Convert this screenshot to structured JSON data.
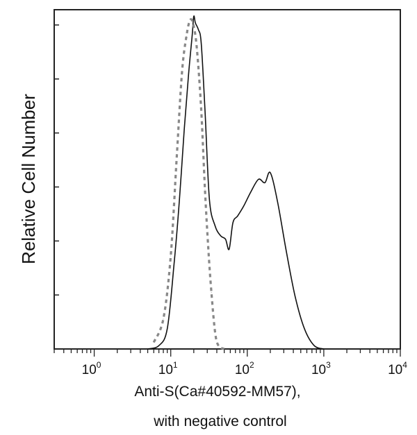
{
  "chart_data": {
    "type": "line",
    "title": "",
    "xlabel": "Anti-S(Ca#40592-MM57),",
    "xlabel_line2": "with negative control",
    "ylabel": "Relative Cell Number",
    "x_scale": "log",
    "xlim": [
      0.3,
      10000
    ],
    "ylim": [
      0,
      1.02
    ],
    "grid": false,
    "legend": "none",
    "x_ticks": [
      {
        "base": "10",
        "exp": "0",
        "value": 1
      },
      {
        "base": "10",
        "exp": "1",
        "value": 10
      },
      {
        "base": "10",
        "exp": "2",
        "value": 100
      },
      {
        "base": "10",
        "exp": "3",
        "value": 1000
      },
      {
        "base": "10",
        "exp": "4",
        "value": 10000
      }
    ],
    "y_tick_count": 6,
    "series": [
      {
        "style": "solid",
        "color": "#111111",
        "x": [
          5,
          7,
          9,
          11,
          13,
          15,
          17,
          19,
          20,
          21,
          23,
          25,
          28,
          32,
          38,
          45,
          52,
          58,
          65,
          75,
          90,
          110,
          140,
          170,
          200,
          250,
          320,
          420,
          560,
          750,
          1000
        ],
        "y": [
          0.0,
          0.01,
          0.06,
          0.25,
          0.45,
          0.66,
          0.82,
          0.94,
          1.0,
          0.98,
          0.96,
          0.92,
          0.72,
          0.45,
          0.37,
          0.34,
          0.33,
          0.3,
          0.38,
          0.4,
          0.43,
          0.47,
          0.51,
          0.5,
          0.53,
          0.44,
          0.3,
          0.16,
          0.06,
          0.01,
          0.0
        ]
      },
      {
        "style": "dashed",
        "color": "#888888",
        "x": [
          6,
          8,
          10,
          12,
          14,
          16,
          18,
          20,
          22,
          25,
          28,
          31,
          34,
          38,
          42,
          50
        ],
        "y": [
          0.02,
          0.09,
          0.28,
          0.58,
          0.83,
          0.94,
          0.99,
          0.97,
          0.9,
          0.72,
          0.48,
          0.3,
          0.17,
          0.05,
          0.01,
          0.0
        ]
      }
    ]
  }
}
